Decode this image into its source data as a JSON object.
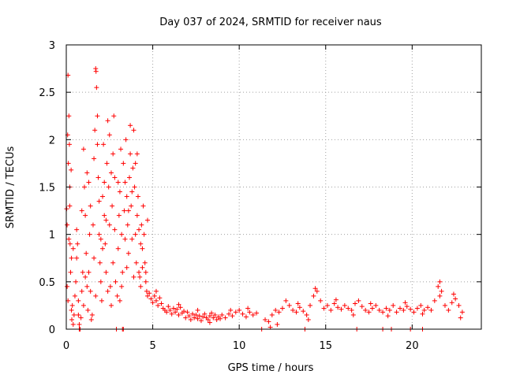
{
  "chart_data": {
    "type": "scatter",
    "title": "Day 037 of 2024, SRMTID for receiver naus",
    "xlabel": "GPS time / hours",
    "ylabel": "SRMTID / TECUs",
    "xlim": [
      0,
      24
    ],
    "ylim": [
      0,
      3
    ],
    "x_ticks": [
      0,
      5,
      10,
      15,
      20
    ],
    "x_tick_labels": [
      "0",
      "5",
      "10",
      "15",
      "20"
    ],
    "y_ticks": [
      0,
      0.5,
      1,
      1.5,
      2,
      2.5,
      3
    ],
    "y_tick_labels": [
      "0",
      "0.5",
      "1",
      "1.5",
      "2",
      "2.5",
      "3"
    ],
    "grid": true,
    "marker": "+",
    "color": "#ff0000",
    "series": [
      {
        "name": "SRMTID",
        "points": [
          [
            0.02,
            1.27
          ],
          [
            0.05,
            1.1
          ],
          [
            0.08,
            2.05
          ],
          [
            0.1,
            2.68
          ],
          [
            0.12,
            1.75
          ],
          [
            0.15,
            2.25
          ],
          [
            0.18,
            1.95
          ],
          [
            0.2,
            1.5
          ],
          [
            0.22,
            0.9
          ],
          [
            0.25,
            0.6
          ],
          [
            0.05,
            0.45
          ],
          [
            0.1,
            0.3
          ],
          [
            0.15,
            0.95
          ],
          [
            0.2,
            1.3
          ],
          [
            0.28,
            1.68
          ],
          [
            0.3,
            0.2
          ],
          [
            0.32,
            0.1
          ],
          [
            0.35,
            0.25
          ],
          [
            0.4,
            0.05
          ],
          [
            0.45,
            0.15
          ],
          [
            0.5,
            0.35
          ],
          [
            0.55,
            0.5
          ],
          [
            0.6,
            0.75
          ],
          [
            0.65,
            0.9
          ],
          [
            0.7,
            0.3
          ],
          [
            0.75,
            0.05
          ],
          [
            0.8,
            0.0
          ],
          [
            0.85,
            0.12
          ],
          [
            0.9,
            0.4
          ],
          [
            0.95,
            0.6
          ],
          [
            1.0,
            1.9
          ],
          [
            1.05,
            1.5
          ],
          [
            1.1,
            1.2
          ],
          [
            1.15,
            0.8
          ],
          [
            1.2,
            0.45
          ],
          [
            1.25,
            0.2
          ],
          [
            1.3,
            0.6
          ],
          [
            1.35,
            1.0
          ],
          [
            1.4,
            1.3
          ],
          [
            1.45,
            0.1
          ],
          [
            1.5,
            0.15
          ],
          [
            1.55,
            1.1
          ],
          [
            1.6,
            1.8
          ],
          [
            1.65,
            2.1
          ],
          [
            1.7,
            2.75
          ],
          [
            1.72,
            2.72
          ],
          [
            1.75,
            2.55
          ],
          [
            1.8,
            2.25
          ],
          [
            1.85,
            1.6
          ],
          [
            1.9,
            1.0
          ],
          [
            1.95,
            0.7
          ],
          [
            2.0,
            0.5
          ],
          [
            2.05,
            0.3
          ],
          [
            2.1,
            1.4
          ],
          [
            2.15,
            1.95
          ],
          [
            2.2,
            1.2
          ],
          [
            2.25,
            0.9
          ],
          [
            2.3,
            0.6
          ],
          [
            2.35,
            1.75
          ],
          [
            2.4,
            2.2
          ],
          [
            2.45,
            1.5
          ],
          [
            2.5,
            1.1
          ],
          [
            2.55,
            0.45
          ],
          [
            2.6,
            0.25
          ],
          [
            2.65,
            1.3
          ],
          [
            2.7,
            1.85
          ],
          [
            2.75,
            2.25
          ],
          [
            2.8,
            1.6
          ],
          [
            2.85,
            0.5
          ],
          [
            2.9,
            0.0
          ],
          [
            2.95,
            0.35
          ],
          [
            3.0,
            0.85
          ],
          [
            3.05,
            1.2
          ],
          [
            3.1,
            1.45
          ],
          [
            3.15,
            1.9
          ],
          [
            3.2,
            1.0
          ],
          [
            3.25,
            0.6
          ],
          [
            3.3,
            0.0
          ],
          [
            3.35,
            1.25
          ],
          [
            3.4,
            1.55
          ],
          [
            3.45,
            2.0
          ],
          [
            3.5,
            1.4
          ],
          [
            3.55,
            1.1
          ],
          [
            3.6,
            0.8
          ],
          [
            3.65,
            1.6
          ],
          [
            3.7,
            1.85
          ],
          [
            3.75,
            1.3
          ],
          [
            3.8,
            0.95
          ],
          [
            3.85,
            1.7
          ],
          [
            3.9,
            2.1
          ],
          [
            3.95,
            1.5
          ],
          [
            4.0,
            1.0
          ],
          [
            4.05,
            0.7
          ],
          [
            4.1,
            1.2
          ],
          [
            4.15,
            1.4
          ],
          [
            4.2,
            0.6
          ],
          [
            4.25,
            0.55
          ],
          [
            4.3,
            0.9
          ],
          [
            4.35,
            1.1
          ],
          [
            4.4,
            0.65
          ],
          [
            4.45,
            1.3
          ],
          [
            4.5,
            1.0
          ],
          [
            4.55,
            0.7
          ],
          [
            4.6,
            0.5
          ],
          [
            4.65,
            0.4
          ],
          [
            4.7,
            0.35
          ],
          [
            0.6,
            1.05
          ],
          [
            0.9,
            1.25
          ],
          [
            1.1,
            0.55
          ],
          [
            1.3,
            1.55
          ],
          [
            1.6,
            0.75
          ],
          [
            1.9,
            1.35
          ],
          [
            2.1,
            0.85
          ],
          [
            2.3,
            1.15
          ],
          [
            2.6,
            1.65
          ],
          [
            2.8,
            1.05
          ],
          [
            3.0,
            1.55
          ],
          [
            3.2,
            0.45
          ],
          [
            3.4,
            0.95
          ],
          [
            3.6,
            1.25
          ],
          [
            3.8,
            1.45
          ],
          [
            4.0,
            1.75
          ],
          [
            4.2,
            1.05
          ],
          [
            4.4,
            0.85
          ],
          [
            4.6,
            0.6
          ],
          [
            4.7,
            1.15
          ],
          [
            0.3,
            0.75
          ],
          [
            0.7,
            0.15
          ],
          [
            1.0,
            0.25
          ],
          [
            1.4,
            0.4
          ],
          [
            1.7,
            0.35
          ],
          [
            2.0,
            0.95
          ],
          [
            2.4,
            0.4
          ],
          [
            2.7,
            0.7
          ],
          [
            3.1,
            0.3
          ],
          [
            3.5,
            0.65
          ],
          [
            3.9,
            0.55
          ],
          [
            4.3,
            0.45
          ],
          [
            1.2,
            1.65
          ],
          [
            2.2,
            1.55
          ],
          [
            3.3,
            1.75
          ],
          [
            4.1,
            1.85
          ],
          [
            2.5,
            2.05
          ],
          [
            1.8,
            1.95
          ],
          [
            3.7,
            2.15
          ],
          [
            0.4,
            0.85
          ],
          [
            4.8,
            0.38
          ],
          [
            4.9,
            0.32
          ],
          [
            5.0,
            0.28
          ],
          [
            5.1,
            0.35
          ],
          [
            5.2,
            0.3
          ],
          [
            5.3,
            0.25
          ],
          [
            5.4,
            0.33
          ],
          [
            5.5,
            0.27
          ],
          [
            5.6,
            0.22
          ],
          [
            5.7,
            0.2
          ],
          [
            5.8,
            0.18
          ],
          [
            5.9,
            0.24
          ],
          [
            6.0,
            0.2
          ],
          [
            6.1,
            0.16
          ],
          [
            6.2,
            0.22
          ],
          [
            6.3,
            0.18
          ],
          [
            6.4,
            0.21
          ],
          [
            6.5,
            0.15
          ],
          [
            6.6,
            0.23
          ],
          [
            6.7,
            0.17
          ],
          [
            6.8,
            0.19
          ],
          [
            6.9,
            0.12
          ],
          [
            7.0,
            0.18
          ],
          [
            7.1,
            0.14
          ],
          [
            7.2,
            0.1
          ],
          [
            7.3,
            0.16
          ],
          [
            7.4,
            0.12
          ],
          [
            7.5,
            0.15
          ],
          [
            7.6,
            0.11
          ],
          [
            7.7,
            0.14
          ],
          [
            7.8,
            0.09
          ],
          [
            7.9,
            0.13
          ],
          [
            8.0,
            0.16
          ],
          [
            8.1,
            0.12
          ],
          [
            8.2,
            0.1
          ],
          [
            8.3,
            0.14
          ],
          [
            8.4,
            0.17
          ],
          [
            8.5,
            0.12
          ],
          [
            8.6,
            0.15
          ],
          [
            8.7,
            0.1
          ],
          [
            8.8,
            0.13
          ],
          [
            8.9,
            0.11
          ],
          [
            9.0,
            0.15
          ],
          [
            9.2,
            0.12
          ],
          [
            9.4,
            0.16
          ],
          [
            9.6,
            0.14
          ],
          [
            9.8,
            0.18
          ],
          [
            10.0,
            0.2
          ],
          [
            10.2,
            0.16
          ],
          [
            10.4,
            0.13
          ],
          [
            10.6,
            0.18
          ],
          [
            10.8,
            0.15
          ],
          [
            11.0,
            0.17
          ],
          [
            11.5,
            0.1
          ],
          [
            11.7,
            0.08
          ],
          [
            11.9,
            0.15
          ],
          [
            12.1,
            0.2
          ],
          [
            12.3,
            0.18
          ],
          [
            12.5,
            0.22
          ],
          [
            12.7,
            0.3
          ],
          [
            12.9,
            0.25
          ],
          [
            13.1,
            0.2
          ],
          [
            13.3,
            0.18
          ],
          [
            13.5,
            0.23
          ],
          [
            13.7,
            0.19
          ],
          [
            13.9,
            0.15
          ],
          [
            14.1,
            0.25
          ],
          [
            14.3,
            0.35
          ],
          [
            14.5,
            0.4
          ],
          [
            14.7,
            0.3
          ],
          [
            14.9,
            0.22
          ],
          [
            15.1,
            0.25
          ],
          [
            15.3,
            0.2
          ],
          [
            15.5,
            0.27
          ],
          [
            15.7,
            0.23
          ],
          [
            15.9,
            0.21
          ],
          [
            16.1,
            0.25
          ],
          [
            16.3,
            0.22
          ],
          [
            16.5,
            0.2
          ],
          [
            16.7,
            0.27
          ],
          [
            16.9,
            0.3
          ],
          [
            17.1,
            0.24
          ],
          [
            17.3,
            0.2
          ],
          [
            17.5,
            0.18
          ],
          [
            17.7,
            0.22
          ],
          [
            17.9,
            0.25
          ],
          [
            18.1,
            0.2
          ],
          [
            18.3,
            0.18
          ],
          [
            18.5,
            0.22
          ],
          [
            18.7,
            0.2
          ],
          [
            18.9,
            0.25
          ],
          [
            19.1,
            0.18
          ],
          [
            19.3,
            0.22
          ],
          [
            19.5,
            0.2
          ],
          [
            19.7,
            0.24
          ],
          [
            19.9,
            0.21
          ],
          [
            20.1,
            0.18
          ],
          [
            20.3,
            0.22
          ],
          [
            20.5,
            0.25
          ],
          [
            20.7,
            0.2
          ],
          [
            20.9,
            0.23
          ],
          [
            21.1,
            0.2
          ],
          [
            21.3,
            0.3
          ],
          [
            21.5,
            0.45
          ],
          [
            21.6,
            0.5
          ],
          [
            21.7,
            0.4
          ],
          [
            21.9,
            0.25
          ],
          [
            22.1,
            0.2
          ],
          [
            22.3,
            0.28
          ],
          [
            22.5,
            0.32
          ],
          [
            22.7,
            0.25
          ],
          [
            22.9,
            0.18
          ],
          [
            5.2,
            0.4
          ],
          [
            6.5,
            0.26
          ],
          [
            7.6,
            0.2
          ],
          [
            8.3,
            0.07
          ],
          [
            9.5,
            0.2
          ],
          [
            10.5,
            0.22
          ],
          [
            12.2,
            0.05
          ],
          [
            13.4,
            0.27
          ],
          [
            14.4,
            0.43
          ],
          [
            15.6,
            0.31
          ],
          [
            16.6,
            0.15
          ],
          [
            17.6,
            0.27
          ],
          [
            18.6,
            0.14
          ],
          [
            19.6,
            0.28
          ],
          [
            20.6,
            0.16
          ],
          [
            21.6,
            0.35
          ],
          [
            22.4,
            0.37
          ],
          [
            22.8,
            0.12
          ],
          [
            11.8,
            0.02
          ],
          [
            14.0,
            0.1
          ],
          [
            3.25,
            0.0
          ],
          [
            13.8,
            0.0
          ],
          [
            11.3,
            0.0
          ],
          [
            16.8,
            0.0
          ],
          [
            18.3,
            0.0
          ],
          [
            18.8,
            0.0
          ],
          [
            19.9,
            0.0
          ],
          [
            20.6,
            0.0
          ],
          [
            0.75,
            0.0
          ]
        ]
      }
    ]
  }
}
